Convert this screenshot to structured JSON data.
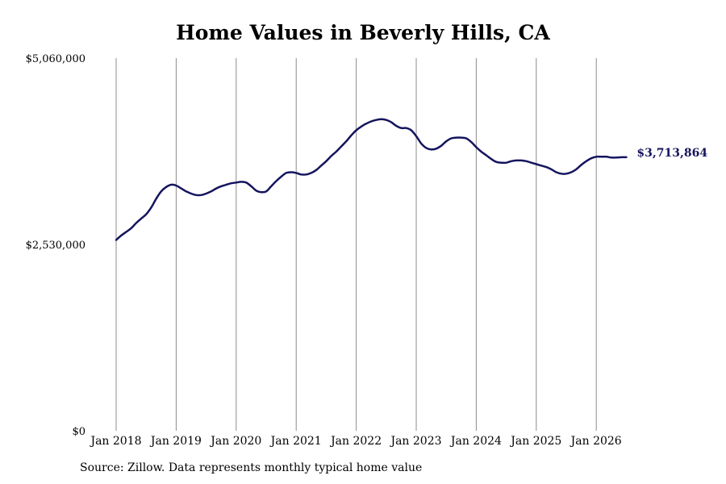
{
  "page": {
    "title": "Home Values in Beverly Hills, CA",
    "source": "Source: Zillow. Data represents monthly typical home value"
  },
  "chart_data": {
    "type": "line",
    "title": "Home Values in Beverly Hills, CA",
    "xlabel": "",
    "ylabel": "",
    "yticks": [
      {
        "value": 0,
        "label": "$0"
      },
      {
        "value": 2530000,
        "label": "$2,530,000"
      },
      {
        "value": 5060000,
        "label": "$5,060,000"
      }
    ],
    "ylim": [
      0,
      5060000
    ],
    "xticks": [
      "Jan 2018",
      "Jan 2019",
      "Jan 2020",
      "Jan 2021",
      "Jan 2022",
      "Jan 2023",
      "Jan 2024",
      "Jan 2025",
      "Jan 2026"
    ],
    "xlim": [
      "2018-01",
      "2026-07"
    ],
    "grid": "vertical lines at each January",
    "line_color": "#14145e",
    "end_label": "$3,713,864",
    "series": [
      {
        "x": [
          "2018-01",
          "2018-02",
          "2018-03",
          "2018-04",
          "2018-05",
          "2018-06",
          "2018-07",
          "2018-08",
          "2018-09",
          "2018-10",
          "2018-11",
          "2018-12",
          "2019-01",
          "2019-02",
          "2019-03",
          "2019-04",
          "2019-05",
          "2019-06",
          "2019-07",
          "2019-08",
          "2019-09",
          "2019-10",
          "2019-11",
          "2019-12",
          "2020-01",
          "2020-02",
          "2020-03",
          "2020-04",
          "2020-05",
          "2020-06",
          "2020-07",
          "2020-08",
          "2020-09",
          "2020-10",
          "2020-11",
          "2020-12",
          "2021-01",
          "2021-02",
          "2021-03",
          "2021-04",
          "2021-05",
          "2021-06",
          "2021-07",
          "2021-08",
          "2021-09",
          "2021-10",
          "2021-11",
          "2021-12",
          "2022-01",
          "2022-02",
          "2022-03",
          "2022-04",
          "2022-05",
          "2022-06",
          "2022-07",
          "2022-08",
          "2022-09",
          "2022-10",
          "2022-11",
          "2022-12",
          "2023-01",
          "2023-02",
          "2023-03",
          "2023-04",
          "2023-05",
          "2023-06",
          "2023-07",
          "2023-08",
          "2023-09",
          "2023-10",
          "2023-11",
          "2023-12",
          "2024-01",
          "2024-02",
          "2024-03",
          "2024-04",
          "2024-05",
          "2024-06",
          "2024-07",
          "2024-08",
          "2024-09",
          "2024-10",
          "2024-11",
          "2024-12",
          "2025-01",
          "2025-02",
          "2025-03",
          "2025-04",
          "2025-05",
          "2025-06",
          "2025-07",
          "2025-08",
          "2025-09",
          "2025-10",
          "2025-11",
          "2025-12",
          "2026-01",
          "2026-02",
          "2026-03",
          "2026-04",
          "2026-05",
          "2026-06",
          "2026-07"
        ],
        "values": [
          2590000,
          2650000,
          2700000,
          2750000,
          2820000,
          2880000,
          2940000,
          3030000,
          3150000,
          3250000,
          3310000,
          3340000,
          3330000,
          3290000,
          3250000,
          3220000,
          3200000,
          3200000,
          3220000,
          3250000,
          3290000,
          3320000,
          3340000,
          3360000,
          3370000,
          3380000,
          3370000,
          3320000,
          3260000,
          3240000,
          3250000,
          3320000,
          3390000,
          3450000,
          3500000,
          3510000,
          3500000,
          3480000,
          3480000,
          3500000,
          3540000,
          3600000,
          3660000,
          3730000,
          3790000,
          3860000,
          3930000,
          4010000,
          4080000,
          4130000,
          4170000,
          4200000,
          4220000,
          4230000,
          4220000,
          4190000,
          4140000,
          4110000,
          4110000,
          4080000,
          4000000,
          3900000,
          3840000,
          3820000,
          3830000,
          3870000,
          3930000,
          3970000,
          3980000,
          3980000,
          3970000,
          3920000,
          3850000,
          3790000,
          3740000,
          3690000,
          3650000,
          3640000,
          3640000,
          3660000,
          3670000,
          3670000,
          3660000,
          3640000,
          3620000,
          3600000,
          3580000,
          3550000,
          3510000,
          3490000,
          3490000,
          3510000,
          3550000,
          3610000,
          3660000,
          3700000,
          3720000,
          3720000,
          3720000,
          3710000,
          3710000,
          3713864,
          3713864
        ]
      }
    ]
  }
}
